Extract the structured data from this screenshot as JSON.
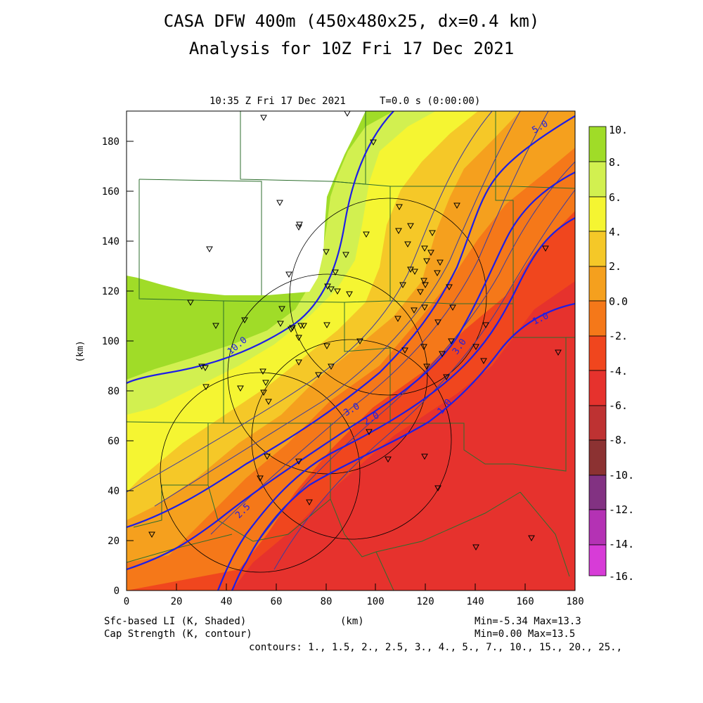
{
  "title_line1": "CASA DFW 400m (450x480x25, dx=0.4 km)",
  "title_line2": "Analysis for 10Z Fri 17 Dec 2021",
  "valid_time": "10:35 Z Fri 17 Dec 2021",
  "elapsed_time": "T=0.0 s (0:00:00)",
  "x_axis": {
    "label": "(km)",
    "min": 0,
    "max": 180,
    "ticks": [
      "0",
      "20",
      "40",
      "60",
      "80",
      "100",
      "120",
      "140",
      "160",
      "180"
    ]
  },
  "y_axis": {
    "label": "(km)",
    "min": 0,
    "max": 192,
    "ticks": [
      "0",
      "20",
      "40",
      "60",
      "80",
      "100",
      "120",
      "140",
      "160",
      "180"
    ]
  },
  "footer": {
    "field1": "Sfc-based LI (K, Shaded)",
    "field2": "Cap Strength (K, contour)",
    "xlabel": "(km)",
    "field1_range": "Min=-5.34 Max=13.3",
    "field2_range": "Min=0.00 Max=13.5",
    "contours": "contours: 1., 1.5, 2., 2.5, 3., 4., 5., 7., 10., 15., 20., 25.,"
  },
  "colorbar": {
    "labels": [
      "10.",
      "8.",
      "6.",
      "4.",
      "2.",
      "0.0",
      "-2.",
      "-4.",
      "-6.",
      "-8.",
      "-10.",
      "-12.",
      "-14.",
      "-16."
    ],
    "colors": [
      "#a0dc28",
      "#d2f050",
      "#f5f532",
      "#f5c828",
      "#f5a01e",
      "#f57819",
      "#f0461e",
      "#e6322d",
      "#be3232",
      "#8c3232",
      "#823282",
      "#b432b4",
      "#d73cd7"
    ]
  },
  "contour_labels": [
    "5.0",
    "10.0",
    "3.0",
    "3.0",
    "2.0",
    "1.0",
    "1.0",
    "2.5"
  ],
  "map_colors": {
    "white_region": "#ffffff",
    "county_lines": "#2d6e2d",
    "contour_thin": "#3c3ca0",
    "contour_thick": "#1e1ee6"
  },
  "markers_count_note": ""
}
